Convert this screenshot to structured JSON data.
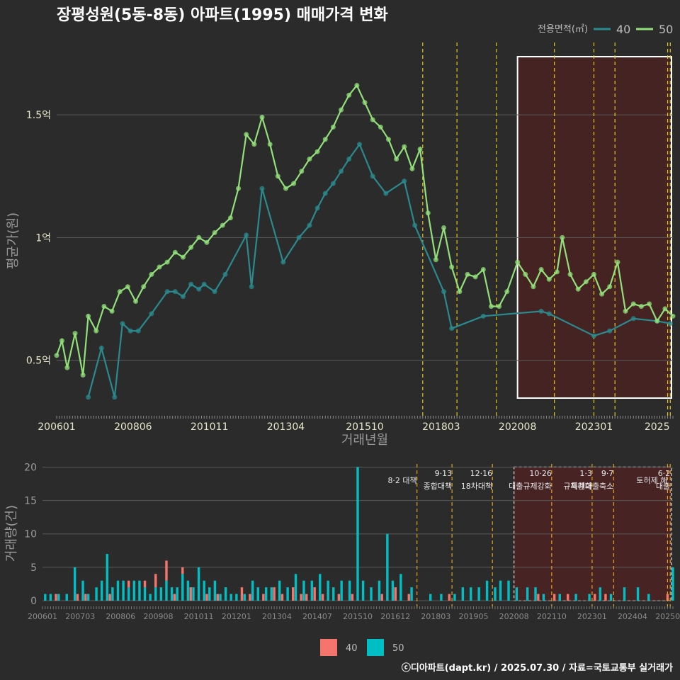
{
  "title": "장평성원(5동-8동) 아파트(1995) 매매가격 변화",
  "credit": "ⓒ디아파트(dapt.kr) / 2025.07.30 / 자료=국토교통부 실거래가",
  "colors": {
    "background": "#2b2b2b",
    "series_40": "#2a8a8e",
    "series_50": "#92e07a",
    "bar_40": "#f5756d",
    "bar_50": "#00bfc4",
    "policy_line": "#e6c619",
    "highlight_fill": "#4a2222",
    "grid": "#5a5a5a"
  },
  "chart_data": [
    {
      "type": "line",
      "title": "장평성원(5동-8동) 아파트(1995) 매매가격 변화",
      "xlabel": "거래년월",
      "ylabel": "평균가(원)",
      "x_ticks": [
        "200601",
        "200806",
        "201011",
        "201304",
        "201510",
        "201803",
        "202008",
        "202301",
        "2025"
      ],
      "y_ticks": [
        {
          "value": 0.5,
          "label": "0.5억"
        },
        {
          "value": 1.0,
          "label": "1억"
        },
        {
          "value": 1.5,
          "label": "1.5억"
        }
      ],
      "ylim": [
        0.28,
        1.78
      ],
      "xlim": [
        "2006-01",
        "2025-07"
      ],
      "legend_title": "전용면적(㎡)",
      "legend_position": "top-right",
      "grid": true,
      "highlight_range": [
        "2020-08",
        "2025-07"
      ],
      "policy_lines": [
        "2017-08",
        "2018-09",
        "2019-12",
        "2021-10",
        "2023-01",
        "2023-09",
        "2025-05",
        "2025-06"
      ],
      "series": [
        {
          "name": "40",
          "points": [
            [
              "2007-01",
              0.35
            ],
            [
              "2007-06",
              0.55
            ],
            [
              "2007-11",
              0.35
            ],
            [
              "2008-02",
              0.65
            ],
            [
              "2008-05",
              0.62
            ],
            [
              "2008-08",
              0.62
            ],
            [
              "2009-01",
              0.69
            ],
            [
              "2009-07",
              0.78
            ],
            [
              "2009-10",
              0.78
            ],
            [
              "2010-01",
              0.76
            ],
            [
              "2010-04",
              0.81
            ],
            [
              "2010-07",
              0.79
            ],
            [
              "2010-09",
              0.81
            ],
            [
              "2011-01",
              0.78
            ],
            [
              "2011-05",
              0.85
            ],
            [
              "2012-01",
              1.01
            ],
            [
              "2012-03",
              0.8
            ],
            [
              "2012-07",
              1.2
            ],
            [
              "2013-03",
              0.9
            ],
            [
              "2013-09",
              1.0
            ],
            [
              "2014-01",
              1.05
            ],
            [
              "2014-04",
              1.12
            ],
            [
              "2014-07",
              1.18
            ],
            [
              "2014-10",
              1.22
            ],
            [
              "2015-01",
              1.27
            ],
            [
              "2015-04",
              1.32
            ],
            [
              "2015-08",
              1.38
            ],
            [
              "2016-01",
              1.25
            ],
            [
              "2016-06",
              1.18
            ],
            [
              "2017-01",
              1.23
            ],
            [
              "2017-05",
              1.05
            ],
            [
              "2018-04",
              0.78
            ],
            [
              "2018-07",
              0.63
            ],
            [
              "2019-07",
              0.68
            ],
            [
              "2021-05",
              0.7
            ],
            [
              "2021-08",
              0.69
            ],
            [
              "2023-01",
              0.6
            ],
            [
              "2023-07",
              0.62
            ],
            [
              "2024-04",
              0.67
            ],
            [
              "2025-01",
              0.66
            ],
            [
              "2025-06",
              0.65
            ]
          ]
        },
        {
          "name": "50",
          "points": [
            [
              "2006-01",
              0.52
            ],
            [
              "2006-03",
              0.58
            ],
            [
              "2006-05",
              0.47
            ],
            [
              "2006-08",
              0.61
            ],
            [
              "2006-11",
              0.44
            ],
            [
              "2007-01",
              0.68
            ],
            [
              "2007-04",
              0.62
            ],
            [
              "2007-07",
              0.72
            ],
            [
              "2007-10",
              0.7
            ],
            [
              "2008-01",
              0.78
            ],
            [
              "2008-04",
              0.8
            ],
            [
              "2008-07",
              0.74
            ],
            [
              "2008-10",
              0.8
            ],
            [
              "2009-01",
              0.85
            ],
            [
              "2009-04",
              0.88
            ],
            [
              "2009-07",
              0.9
            ],
            [
              "2009-10",
              0.94
            ],
            [
              "2010-01",
              0.92
            ],
            [
              "2010-04",
              0.96
            ],
            [
              "2010-07",
              1.0
            ],
            [
              "2010-10",
              0.98
            ],
            [
              "2011-01",
              1.02
            ],
            [
              "2011-04",
              1.05
            ],
            [
              "2011-07",
              1.08
            ],
            [
              "2011-10",
              1.2
            ],
            [
              "2012-01",
              1.42
            ],
            [
              "2012-04",
              1.38
            ],
            [
              "2012-07",
              1.49
            ],
            [
              "2012-10",
              1.38
            ],
            [
              "2013-01",
              1.25
            ],
            [
              "2013-04",
              1.2
            ],
            [
              "2013-07",
              1.22
            ],
            [
              "2013-10",
              1.27
            ],
            [
              "2014-01",
              1.32
            ],
            [
              "2014-04",
              1.35
            ],
            [
              "2014-07",
              1.4
            ],
            [
              "2014-10",
              1.45
            ],
            [
              "2015-01",
              1.52
            ],
            [
              "2015-04",
              1.58
            ],
            [
              "2015-07",
              1.62
            ],
            [
              "2015-10",
              1.55
            ],
            [
              "2016-01",
              1.48
            ],
            [
              "2016-04",
              1.45
            ],
            [
              "2016-07",
              1.4
            ],
            [
              "2016-10",
              1.32
            ],
            [
              "2017-01",
              1.37
            ],
            [
              "2017-04",
              1.28
            ],
            [
              "2017-07",
              1.36
            ],
            [
              "2017-10",
              1.1
            ],
            [
              "2018-01",
              0.91
            ],
            [
              "2018-04",
              1.04
            ],
            [
              "2018-07",
              0.88
            ],
            [
              "2018-10",
              0.78
            ],
            [
              "2019-01",
              0.85
            ],
            [
              "2019-04",
              0.84
            ],
            [
              "2019-07",
              0.87
            ],
            [
              "2019-10",
              0.72
            ],
            [
              "2020-01",
              0.72
            ],
            [
              "2020-04",
              0.78
            ],
            [
              "2020-08",
              0.9
            ],
            [
              "2020-11",
              0.85
            ],
            [
              "2021-02",
              0.8
            ],
            [
              "2021-05",
              0.87
            ],
            [
              "2021-08",
              0.83
            ],
            [
              "2021-11",
              0.86
            ],
            [
              "2022-01",
              1.0
            ],
            [
              "2022-04",
              0.85
            ],
            [
              "2022-07",
              0.79
            ],
            [
              "2022-10",
              0.82
            ],
            [
              "2023-01",
              0.85
            ],
            [
              "2023-04",
              0.77
            ],
            [
              "2023-07",
              0.8
            ],
            [
              "2023-10",
              0.9
            ],
            [
              "2024-01",
              0.7
            ],
            [
              "2024-04",
              0.73
            ],
            [
              "2024-07",
              0.72
            ],
            [
              "2024-10",
              0.73
            ],
            [
              "2025-01",
              0.66
            ],
            [
              "2025-04",
              0.71
            ],
            [
              "2025-07",
              0.68
            ]
          ]
        }
      ]
    },
    {
      "type": "bar",
      "ylabel": "거래량(건)",
      "ylim": [
        0,
        21
      ],
      "y_ticks": [
        0,
        5,
        10,
        15,
        20
      ],
      "x_ticks": [
        "200601",
        "200703",
        "200806",
        "200908",
        "201011",
        "201201",
        "201304",
        "201407",
        "201510",
        "201612",
        "201803",
        "201905",
        "202008",
        "202110",
        "202301",
        "202404",
        "202506"
      ],
      "stacked": true,
      "highlight_range": [
        "2020-08",
        "2025-07"
      ],
      "legend_position": "bottom",
      "policy_annotations": [
        {
          "date": "2017-08",
          "label": "8·2 대책"
        },
        {
          "date": "2018-09",
          "label": "9·13\n종합대책"
        },
        {
          "date": "2019-12",
          "label": "12·16\n18차대책"
        },
        {
          "date": "2021-10",
          "label": "10·26\n대출규제강화"
        },
        {
          "date": "2023-01",
          "label": "1·3\n규제완화"
        },
        {
          "date": "2023-09",
          "label": "9·7\n특례대출축소"
        },
        {
          "date": "2025-05",
          "label": "토허제 해"
        },
        {
          "date": "2025-06",
          "label": "6·2\n대출"
        }
      ],
      "series": [
        {
          "name": "40",
          "data": [
            [
              "2006-06",
              1
            ],
            [
              "2007-02",
              1
            ],
            [
              "2007-05",
              1
            ],
            [
              "2008-02",
              1
            ],
            [
              "2008-09",
              1
            ],
            [
              "2009-03",
              1
            ],
            [
              "2009-07",
              2
            ],
            [
              "2009-11",
              3
            ],
            [
              "2010-02",
              1
            ],
            [
              "2010-05",
              1
            ],
            [
              "2010-08",
              2
            ],
            [
              "2011-02",
              1
            ],
            [
              "2011-06",
              1
            ],
            [
              "2012-03",
              2
            ],
            [
              "2012-06",
              1
            ],
            [
              "2012-11",
              1
            ],
            [
              "2013-03",
              2
            ],
            [
              "2013-06",
              1
            ],
            [
              "2013-10",
              2
            ],
            [
              "2014-01",
              1
            ],
            [
              "2014-03",
              1
            ],
            [
              "2014-06",
              2
            ],
            [
              "2014-09",
              1
            ],
            [
              "2015-03",
              1
            ],
            [
              "2015-08",
              1
            ],
            [
              "2016-07",
              1
            ],
            [
              "2016-12",
              2
            ],
            [
              "2017-05",
              1
            ],
            [
              "2018-08",
              1
            ],
            [
              "2021-05",
              1
            ],
            [
              "2021-11",
              1
            ],
            [
              "2022-04",
              1
            ],
            [
              "2023-02",
              1
            ],
            [
              "2023-06",
              1
            ],
            [
              "2025-05",
              1
            ]
          ]
        },
        {
          "name": "50",
          "data": [
            [
              "2006-02",
              1
            ],
            [
              "2006-04",
              1
            ],
            [
              "2006-07",
              1
            ],
            [
              "2006-10",
              1
            ],
            [
              "2007-01",
              5
            ],
            [
              "2007-04",
              3
            ],
            [
              "2007-06",
              1
            ],
            [
              "2007-09",
              2
            ],
            [
              "2007-11",
              3
            ],
            [
              "2008-01",
              7
            ],
            [
              "2008-03",
              2
            ],
            [
              "2008-05",
              3
            ],
            [
              "2008-07",
              3
            ],
            [
              "2008-09",
              2
            ],
            [
              "2008-11",
              3
            ],
            [
              "2009-01",
              3
            ],
            [
              "2009-03",
              2
            ],
            [
              "2009-05",
              1
            ],
            [
              "2009-07",
              2
            ],
            [
              "2009-09",
              2
            ],
            [
              "2009-11",
              3
            ],
            [
              "2010-01",
              2
            ],
            [
              "2010-03",
              2
            ],
            [
              "2010-05",
              4
            ],
            [
              "2010-07",
              3
            ],
            [
              "2010-09",
              2
            ],
            [
              "2010-11",
              5
            ],
            [
              "2011-01",
              3
            ],
            [
              "2011-03",
              2
            ],
            [
              "2011-05",
              3
            ],
            [
              "2011-07",
              1
            ],
            [
              "2011-09",
              2
            ],
            [
              "2011-11",
              1
            ],
            [
              "2012-01",
              1
            ],
            [
              "2012-04",
              1
            ],
            [
              "2012-07",
              3
            ],
            [
              "2012-09",
              2
            ],
            [
              "2012-12",
              2
            ],
            [
              "2013-02",
              2
            ],
            [
              "2013-05",
              3
            ],
            [
              "2013-08",
              2
            ],
            [
              "2013-11",
              4
            ],
            [
              "2014-02",
              3
            ],
            [
              "2014-05",
              3
            ],
            [
              "2014-08",
              4
            ],
            [
              "2014-11",
              3
            ],
            [
              "2015-01",
              2
            ],
            [
              "2015-04",
              3
            ],
            [
              "2015-07",
              3
            ],
            [
              "2015-10",
              20
            ],
            [
              "2015-12",
              3
            ],
            [
              "2016-03",
              2
            ],
            [
              "2016-06",
              3
            ],
            [
              "2016-09",
              10
            ],
            [
              "2016-11",
              3
            ],
            [
              "2017-02",
              4
            ],
            [
              "2017-06",
              2
            ],
            [
              "2018-01",
              1
            ],
            [
              "2018-05",
              1
            ],
            [
              "2018-10",
              1
            ],
            [
              "2019-01",
              2
            ],
            [
              "2019-04",
              2
            ],
            [
              "2019-07",
              2
            ],
            [
              "2019-10",
              3
            ],
            [
              "2020-01",
              2
            ],
            [
              "2020-03",
              3
            ],
            [
              "2020-06",
              3
            ],
            [
              "2020-09",
              2
            ],
            [
              "2021-01",
              2
            ],
            [
              "2021-04",
              2
            ],
            [
              "2021-07",
              1
            ],
            [
              "2022-01",
              1
            ],
            [
              "2022-07",
              1
            ],
            [
              "2022-12",
              1
            ],
            [
              "2023-04",
              2
            ],
            [
              "2023-08",
              1
            ],
            [
              "2024-01",
              2
            ],
            [
              "2024-06",
              2
            ],
            [
              "2024-10",
              1
            ],
            [
              "2025-07",
              5
            ]
          ]
        }
      ]
    }
  ]
}
